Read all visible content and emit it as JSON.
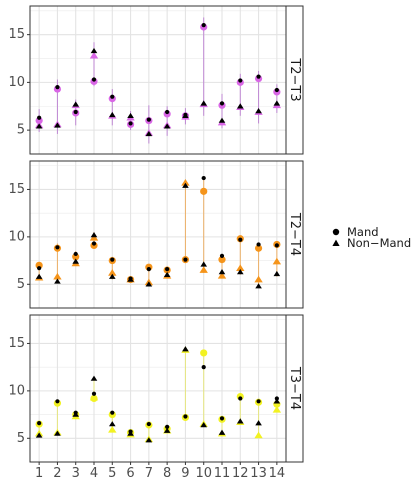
{
  "chart_data": {
    "type": "scatter",
    "x_ticks": [
      "1",
      "2",
      "3",
      "4",
      "5",
      "6",
      "7",
      "8",
      "9",
      "10",
      "11",
      "12",
      "13",
      "14"
    ],
    "y_ticks": [
      5,
      10,
      15
    ],
    "ylim": [
      2.5,
      18.0
    ],
    "xlim": [
      0.5,
      14.5
    ],
    "grid": true,
    "legend": {
      "placement": "right",
      "items": [
        {
          "label": "Mand",
          "shape": "circle"
        },
        {
          "label": "Non−Mand",
          "shape": "triangle"
        }
      ]
    },
    "panels": [
      {
        "label": "T2−T3",
        "color": "#d966e6",
        "err_color": "#b46ad0",
        "mand_black": [
          6.3,
          9.5,
          6.9,
          10.3,
          8.5,
          5.7,
          6.1,
          6.9,
          6.6,
          16.0,
          7.8,
          10.2,
          10.6,
          9.2
        ],
        "mand_colored": [
          6.0,
          9.3,
          6.8,
          10.1,
          8.3,
          5.6,
          6.0,
          6.7,
          6.5,
          15.8,
          7.6,
          10.0,
          10.4,
          9.0
        ],
        "nonmand_black": [
          5.4,
          5.5,
          7.7,
          13.3,
          6.6,
          6.5,
          4.6,
          5.4,
          6.5,
          7.8,
          6.0,
          7.5,
          7.0,
          7.8
        ],
        "nonmand_colored": [
          5.5,
          5.6,
          7.6,
          12.8,
          6.5,
          6.3,
          4.7,
          5.5,
          6.4,
          7.7,
          5.8,
          7.4,
          6.9,
          7.6
        ],
        "err_high": [
          7.2,
          10.3,
          8.2,
          14.2,
          9.3,
          7.0,
          7.6,
          7.5,
          7.3,
          16.8,
          8.8,
          10.9,
          11.2,
          9.8
        ],
        "err_low": [
          4.8,
          4.6,
          5.5,
          9.6,
          5.5,
          5.0,
          3.6,
          4.4,
          5.6,
          6.5,
          5.2,
          6.5,
          5.7,
          6.8
        ]
      },
      {
        "label": "T2−T4",
        "color": "#f5941a",
        "err_color": "#f0a040",
        "mand_black": [
          6.7,
          8.9,
          8.2,
          9.3,
          7.6,
          5.6,
          6.6,
          6.6,
          7.6,
          16.2,
          8.0,
          9.7,
          9.2,
          9.1
        ],
        "mand_colored": [
          7.0,
          8.8,
          7.9,
          9.1,
          7.5,
          5.5,
          6.8,
          6.5,
          7.6,
          14.8,
          7.6,
          9.8,
          8.8,
          9.2
        ],
        "nonmand_black": [
          5.8,
          5.3,
          7.4,
          10.2,
          5.8,
          5.5,
          5.0,
          6.0,
          15.4,
          7.1,
          6.3,
          6.3,
          4.8,
          6.1
        ],
        "nonmand_colored": [
          5.7,
          5.8,
          7.2,
          9.9,
          6.2,
          5.5,
          5.2,
          5.9,
          15.7,
          6.5,
          5.9,
          6.7,
          5.5,
          7.4
        ],
        "err_high": [
          7.3,
          9.3,
          8.5,
          10.5,
          7.9,
          5.8,
          7.0,
          6.9,
          16.0,
          16.4,
          8.2,
          10.0,
          9.4,
          9.4
        ],
        "err_low": [
          5.4,
          5.1,
          7.0,
          8.8,
          5.5,
          5.2,
          4.8,
          5.6,
          7.3,
          6.2,
          5.6,
          6.0,
          4.6,
          5.8
        ]
      },
      {
        "label": "T3−T4",
        "color": "#f2f222",
        "err_color": "#e8e860",
        "mand_black": [
          6.6,
          8.9,
          7.7,
          9.7,
          7.7,
          5.7,
          6.5,
          6.2,
          7.3,
          12.5,
          7.1,
          9.2,
          8.9,
          9.2
        ],
        "mand_colored": [
          6.5,
          8.7,
          7.5,
          9.2,
          7.5,
          5.6,
          6.4,
          6.0,
          7.2,
          14.0,
          7.0,
          9.4,
          8.8,
          8.6
        ],
        "nonmand_black": [
          5.3,
          5.5,
          7.5,
          11.3,
          6.5,
          5.5,
          4.8,
          5.8,
          14.4,
          6.4,
          5.6,
          6.8,
          6.6,
          8.9
        ],
        "nonmand_colored": [
          5.5,
          5.6,
          7.3,
          9.3,
          5.9,
          5.4,
          4.9,
          5.8,
          14.3,
          6.5,
          5.5,
          6.7,
          5.3,
          8.0
        ],
        "err_high": [
          6.8,
          9.1,
          7.9,
          11.5,
          7.9,
          5.9,
          6.7,
          6.4,
          14.6,
          14.3,
          7.3,
          9.6,
          9.1,
          9.4
        ],
        "err_low": [
          5.1,
          5.3,
          7.0,
          9.0,
          5.6,
          5.2,
          4.6,
          5.6,
          7.0,
          6.2,
          5.3,
          6.5,
          5.1,
          7.8
        ]
      }
    ]
  }
}
